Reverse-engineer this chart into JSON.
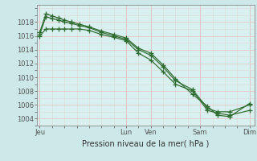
{
  "bg_color": "#cce8e8",
  "plot_bg_color": "#d8f0f0",
  "grid_color_major": "#e8c8c8",
  "grid_color_minor": "#e0d8d8",
  "line_color": "#2d6a2d",
  "marker_color": "#2d6a2d",
  "ylabel_ticks": [
    1004,
    1006,
    1008,
    1010,
    1012,
    1014,
    1016,
    1018
  ],
  "xlabel": "Pression niveau de la mer( hPa )",
  "xtick_labels": [
    "Jeu",
    "Lun",
    "Ven",
    "Sam",
    "Dim"
  ],
  "xtick_positions": [
    0,
    3.5,
    4.5,
    6.5,
    8.5
  ],
  "xlim": [
    -0.1,
    8.7
  ],
  "ylim": [
    1003.0,
    1020.5
  ],
  "series1": {
    "x": [
      0.0,
      0.25,
      0.5,
      0.75,
      1.0,
      1.3,
      1.6,
      2.0,
      2.5,
      3.0,
      3.5,
      4.0,
      4.5,
      5.0,
      5.5,
      6.2,
      6.8,
      7.2,
      7.7,
      8.5
    ],
    "y": [
      1016.0,
      1017.0,
      1017.0,
      1017.0,
      1017.0,
      1017.0,
      1017.0,
      1016.8,
      1016.2,
      1015.8,
      1015.3,
      1013.5,
      1012.5,
      1010.8,
      1009.0,
      1008.0,
      1005.2,
      1004.8,
      1004.5,
      1005.2
    ]
  },
  "series2": {
    "x": [
      0.0,
      0.25,
      0.5,
      0.75,
      1.0,
      1.3,
      1.6,
      2.0,
      2.5,
      3.0,
      3.5,
      4.0,
      4.5,
      5.0,
      5.5,
      6.2,
      6.8,
      7.2,
      7.7,
      8.5
    ],
    "y": [
      1016.2,
      1018.8,
      1018.5,
      1018.3,
      1018.0,
      1017.8,
      1017.5,
      1017.2,
      1016.5,
      1016.0,
      1015.5,
      1014.0,
      1013.2,
      1011.5,
      1009.5,
      1008.2,
      1005.5,
      1005.0,
      1005.0,
      1006.0
    ]
  },
  "series3": {
    "x": [
      0.0,
      0.25,
      0.5,
      0.75,
      1.0,
      1.3,
      1.6,
      2.0,
      2.5,
      3.0,
      3.5,
      4.0,
      4.5,
      5.0,
      5.5,
      6.2,
      6.8,
      7.2,
      7.7,
      8.5
    ],
    "y": [
      1016.5,
      1019.2,
      1018.9,
      1018.6,
      1018.3,
      1018.0,
      1017.7,
      1017.3,
      1016.7,
      1016.2,
      1015.7,
      1014.2,
      1013.5,
      1011.8,
      1009.8,
      1007.5,
      1005.8,
      1004.5,
      1004.3,
      1006.2
    ]
  }
}
